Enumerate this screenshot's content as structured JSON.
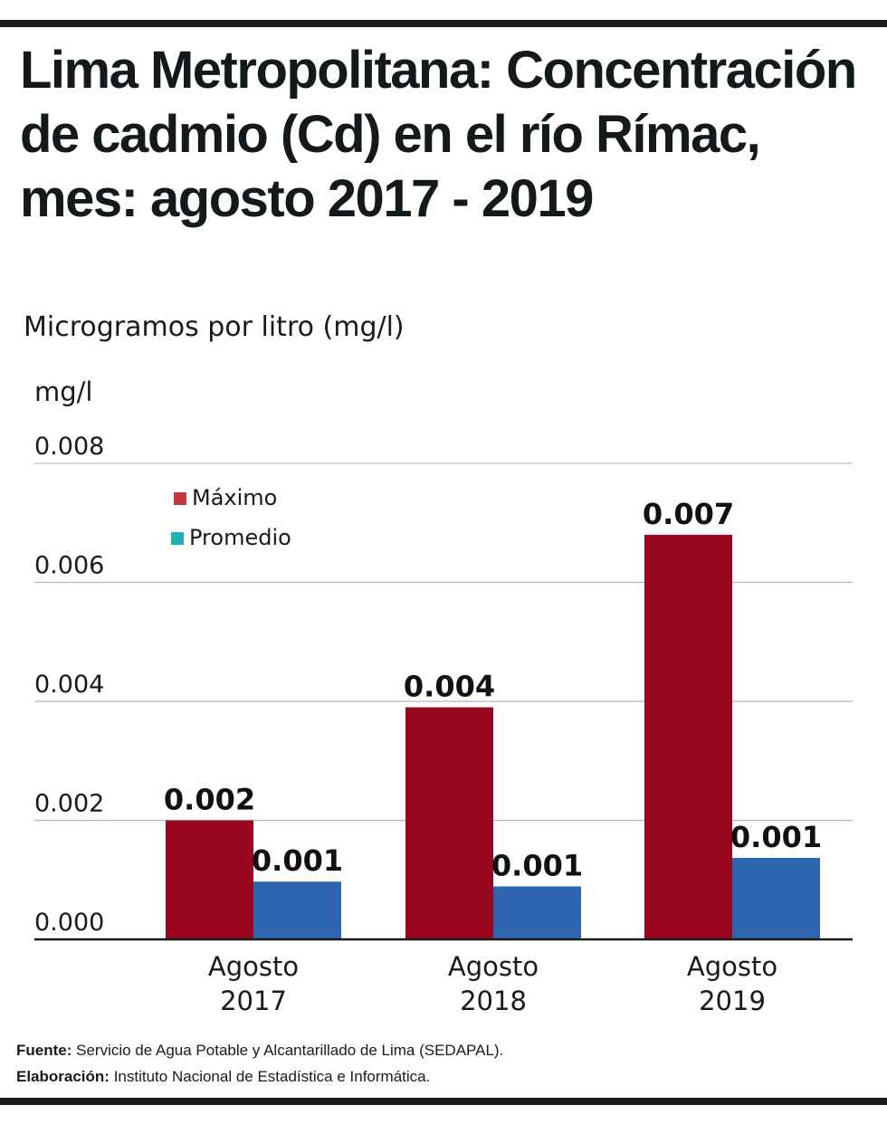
{
  "header": {
    "title": "Lima Metropolitana: Concentración de cadmio (Cd) en el río Rímac, mes: agosto 2017 - 2019",
    "subtitle": "Microgramos por litro (mg/l)"
  },
  "footer": {
    "source_label": "Fuente:",
    "source_text": "Servicio de Agua Potable y Alcantarillado de Lima (SEDAPAL).",
    "credit_label": "Elaboración:",
    "credit_text": "Instituto Nacional de Estadística e Informática."
  },
  "chart_data": {
    "type": "bar",
    "title": "Lima Metropolitana: Concentración de cadmio (Cd) en el río Rímac, mes: agosto 2017 - 2019",
    "subtitle": "Microgramos por litro (mg/l)",
    "xlabel": "",
    "ylabel": "mg/l",
    "ylim": [
      0,
      0.008
    ],
    "yticks": [
      0.0,
      0.002,
      0.004,
      0.006,
      0.008
    ],
    "ytick_labels": [
      "0.000",
      "0.002",
      "0.004",
      "0.006",
      "0.008"
    ],
    "grid": true,
    "legend_position": "top-left",
    "categories": [
      [
        "Agosto",
        "2017"
      ],
      [
        "Agosto",
        "2018"
      ],
      [
        "Agosto",
        "2019"
      ]
    ],
    "series": [
      {
        "name": "Máximo",
        "color": "#9b0620",
        "legend_color": "#c0393f",
        "values": [
          0.002,
          0.0039,
          0.0068
        ],
        "labels": [
          "0.002",
          "0.004",
          "0.007"
        ]
      },
      {
        "name": "Promedio",
        "color": "#2e66b0",
        "legend_color": "#1fb2b2",
        "values": [
          0.00097,
          0.00089,
          0.00137
        ],
        "labels": [
          "0.001",
          "0.001",
          "0.001"
        ]
      }
    ]
  }
}
